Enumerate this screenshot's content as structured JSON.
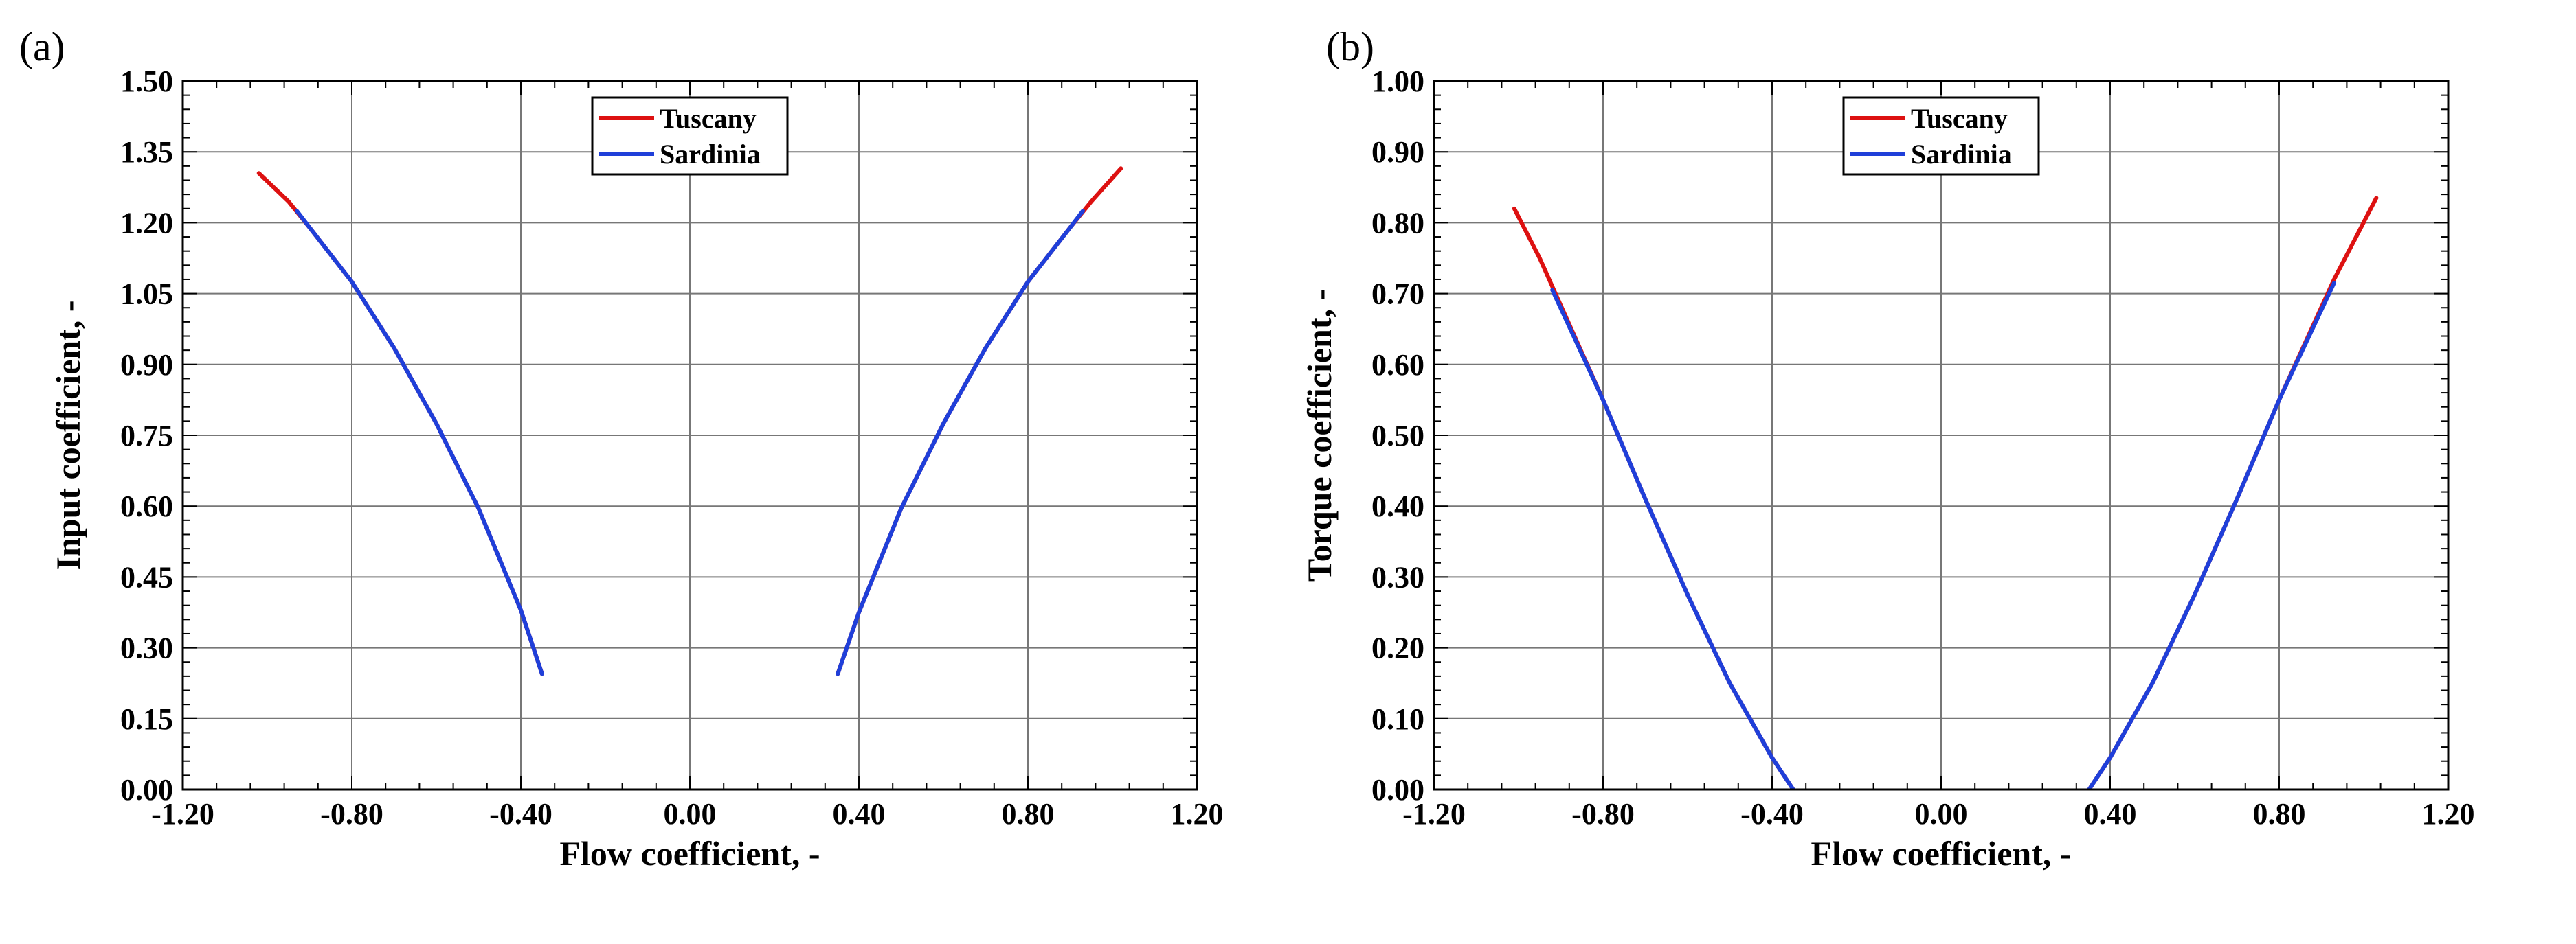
{
  "chart_data": [
    {
      "type": "line",
      "panel_label": "(a)",
      "xlabel": "Flow coefficient, -",
      "ylabel": "Input coefficient, -",
      "xlim": [
        -1.2,
        1.2
      ],
      "ylim": [
        0,
        1.5
      ],
      "xticks": [
        "-1.20",
        "-0.80",
        "-0.40",
        "0.00",
        "0.40",
        "0.80",
        "1.20"
      ],
      "yticks": [
        "0.00",
        "0.15",
        "0.30",
        "0.45",
        "0.60",
        "0.75",
        "0.90",
        "1.05",
        "1.20",
        "1.35",
        "1.50"
      ],
      "grid": true,
      "legend_position": "top-center",
      "series": [
        {
          "name": "Tuscany",
          "color": "#dd1111",
          "segments": [
            {
              "x": [
                -1.02,
                -0.95,
                -0.9,
                -0.8,
                -0.7,
                -0.6,
                -0.5,
                -0.4,
                -0.35
              ],
              "y": [
                1.305,
                1.245,
                1.19,
                1.075,
                0.935,
                0.775,
                0.595,
                0.38,
                0.245
              ]
            },
            {
              "x": [
                0.35,
                0.4,
                0.5,
                0.6,
                0.7,
                0.8,
                0.9,
                0.95,
                1.02
              ],
              "y": [
                0.245,
                0.375,
                0.595,
                0.775,
                0.935,
                1.075,
                1.19,
                1.245,
                1.315
              ]
            }
          ]
        },
        {
          "name": "Sardinia",
          "color": "#1f3fd9",
          "segments": [
            {
              "x": [
                -0.93,
                -0.9,
                -0.8,
                -0.7,
                -0.6,
                -0.5,
                -0.4,
                -0.35
              ],
              "y": [
                1.225,
                1.19,
                1.075,
                0.935,
                0.775,
                0.595,
                0.38,
                0.245
              ]
            },
            {
              "x": [
                0.35,
                0.4,
                0.5,
                0.6,
                0.7,
                0.8,
                0.9,
                0.93
              ],
              "y": [
                0.245,
                0.375,
                0.595,
                0.775,
                0.935,
                1.075,
                1.19,
                1.225
              ]
            }
          ]
        }
      ]
    },
    {
      "type": "line",
      "panel_label": "(b)",
      "xlabel": "Flow coefficient, -",
      "ylabel": "Torque coefficient, -",
      "xlim": [
        -1.2,
        1.2
      ],
      "ylim": [
        0,
        1.0
      ],
      "xticks": [
        "-1.20",
        "-0.80",
        "-0.40",
        "0.00",
        "0.40",
        "0.80",
        "1.20"
      ],
      "yticks": [
        "0.00",
        "0.10",
        "0.20",
        "0.30",
        "0.40",
        "0.50",
        "0.60",
        "0.70",
        "0.80",
        "0.90",
        "1.00"
      ],
      "grid": true,
      "legend_position": "top-center",
      "series": [
        {
          "name": "Tuscany",
          "color": "#dd1111",
          "segments": [
            {
              "x": [
                -1.01,
                -0.95,
                -0.92,
                -0.8,
                -0.7,
                -0.6,
                -0.5,
                -0.4,
                -0.35
              ],
              "y": [
                0.82,
                0.75,
                0.71,
                0.55,
                0.41,
                0.275,
                0.15,
                0.045,
                0.0
              ]
            },
            {
              "x": [
                0.35,
                0.4,
                0.5,
                0.6,
                0.7,
                0.8,
                0.93,
                1.03
              ],
              "y": [
                0.0,
                0.045,
                0.15,
                0.275,
                0.41,
                0.55,
                0.72,
                0.835
              ]
            }
          ]
        },
        {
          "name": "Sardinia",
          "color": "#1f3fd9",
          "segments": [
            {
              "x": [
                -0.92,
                -0.8,
                -0.7,
                -0.6,
                -0.5,
                -0.4,
                -0.35
              ],
              "y": [
                0.705,
                0.55,
                0.41,
                0.275,
                0.15,
                0.045,
                0.0
              ]
            },
            {
              "x": [
                0.35,
                0.4,
                0.5,
                0.6,
                0.7,
                0.8,
                0.93
              ],
              "y": [
                0.0,
                0.045,
                0.15,
                0.275,
                0.41,
                0.55,
                0.715
              ]
            }
          ]
        }
      ]
    }
  ]
}
